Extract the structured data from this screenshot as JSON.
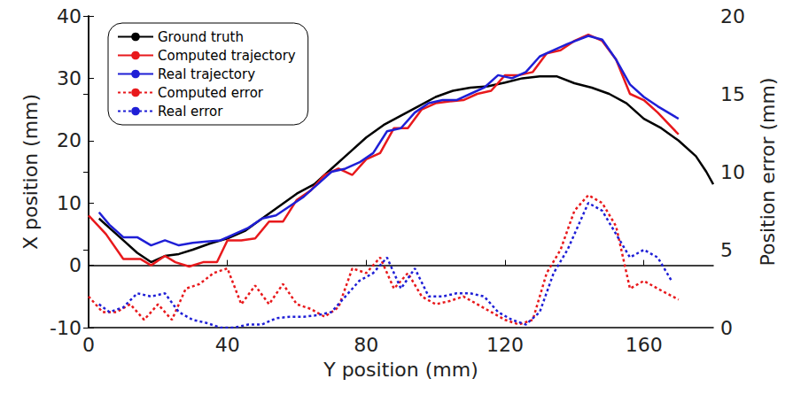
{
  "chart_data": {
    "type": "line",
    "x_label": "Y position (mm)",
    "y_label": "X position (mm)",
    "y2_label": "Position error (mm)",
    "xlim": [
      0,
      180
    ],
    "xticks": [
      0,
      40,
      80,
      120,
      160
    ],
    "ylim": [
      -10,
      40
    ],
    "yticks": [
      -10,
      0,
      10,
      20,
      30,
      40
    ],
    "y2lim": [
      0,
      20
    ],
    "y2ticks": [
      0,
      5,
      10,
      15,
      20
    ],
    "grid": false,
    "legend": "upper left",
    "series": [
      {
        "name": "Ground truth",
        "color": "#000000",
        "line_style": "solid",
        "x": [
          3,
          6,
          10,
          14,
          18,
          22,
          26,
          30,
          35,
          40,
          45,
          50,
          55,
          60,
          65,
          70,
          75,
          80,
          85,
          90,
          95,
          100,
          105,
          110,
          115,
          120,
          125,
          130,
          135,
          140,
          145,
          150,
          155,
          160,
          165,
          170,
          175,
          178,
          180
        ],
        "values": [
          7.5,
          6,
          4,
          2,
          0.5,
          1.5,
          1.8,
          2.5,
          3.5,
          4.3,
          5.5,
          7.5,
          9.5,
          11.5,
          13,
          15.5,
          18,
          20.5,
          22.5,
          24,
          25.5,
          27,
          28,
          28.5,
          28.7,
          29.3,
          30,
          30.3,
          30.3,
          29.2,
          28.5,
          27.5,
          26,
          23.5,
          22,
          20,
          17.5,
          15,
          13
        ]
      },
      {
        "name": "Computed trajectory",
        "color": "#e8191c",
        "line_style": "solid",
        "x": [
          0,
          5,
          10,
          15,
          18,
          22,
          25,
          29,
          33,
          37,
          40,
          44,
          48,
          52,
          56,
          60,
          64,
          68,
          72,
          76,
          80,
          84,
          88,
          92,
          96,
          100,
          104,
          108,
          112,
          116,
          120,
          124,
          128,
          132,
          136,
          140,
          144,
          148,
          152,
          156,
          160,
          164,
          170
        ],
        "values": [
          8,
          5,
          1,
          1,
          0,
          1.5,
          0.5,
          -0.2,
          0.5,
          0.5,
          4,
          4,
          4.3,
          7,
          7,
          10.5,
          12,
          14.5,
          15.5,
          14.5,
          17,
          18,
          22,
          22,
          25,
          26,
          26.3,
          26.5,
          27.5,
          28,
          30.5,
          30.5,
          31,
          34,
          34.5,
          36,
          37,
          36,
          33,
          27.5,
          26.5,
          24.5,
          21
        ]
      },
      {
        "name": "Real trajectory",
        "color": "#1f1fd6",
        "line_style": "solid",
        "x": [
          3,
          6,
          10,
          14,
          18,
          22,
          26,
          30,
          34,
          38,
          42,
          46,
          50,
          54,
          58,
          62,
          66,
          70,
          74,
          78,
          82,
          86,
          90,
          94,
          98,
          102,
          106,
          110,
          114,
          118,
          122,
          126,
          130,
          134,
          138,
          144,
          148,
          152,
          156,
          160,
          164,
          170
        ],
        "values": [
          8.5,
          6.5,
          4.5,
          4.5,
          3.2,
          4,
          3.2,
          3.6,
          3.8,
          4,
          5,
          6,
          7.5,
          8,
          9.5,
          11,
          13,
          15,
          15.5,
          16.5,
          18,
          21.5,
          22,
          24.5,
          26,
          26.5,
          26.5,
          27.5,
          28.5,
          30.5,
          30,
          31,
          33.5,
          34.5,
          35.5,
          36.8,
          36.2,
          33,
          29,
          27,
          25.5,
          23.5
        ]
      },
      {
        "name": "Computed error",
        "color": "#e8191c",
        "line_style": "dotted",
        "axis": "y2",
        "x": [
          0,
          4,
          8,
          12,
          16,
          20,
          24,
          28,
          32,
          36,
          40,
          44,
          48,
          52,
          56,
          60,
          64,
          68,
          72,
          76,
          80,
          84,
          88,
          92,
          96,
          100,
          104,
          108,
          112,
          116,
          120,
          124,
          128,
          132,
          136,
          140,
          144,
          148,
          152,
          156,
          160,
          164,
          170
        ],
        "values": [
          2,
          1,
          1,
          1.5,
          0.5,
          1.5,
          0.5,
          2.5,
          2.8,
          3.5,
          3.8,
          1.5,
          2.7,
          1.5,
          2.8,
          1.5,
          1.2,
          0.7,
          1.3,
          3.8,
          3.5,
          4.5,
          2.5,
          3.5,
          2,
          1.5,
          1.7,
          2,
          1.5,
          1,
          0.5,
          0.2,
          0.5,
          3.5,
          5,
          7.5,
          8.5,
          8,
          6.5,
          2.5,
          3,
          2.5,
          1.8
        ]
      },
      {
        "name": "Real error",
        "color": "#1f1fd6",
        "line_style": "dotted",
        "axis": "y2",
        "x": [
          3,
          6,
          10,
          14,
          18,
          22,
          26,
          30,
          34,
          38,
          42,
          46,
          50,
          54,
          58,
          62,
          66,
          70,
          74,
          78,
          82,
          86,
          90,
          94,
          98,
          102,
          106,
          110,
          114,
          118,
          122,
          126,
          130,
          134,
          138,
          144,
          148,
          152,
          156,
          160,
          164,
          168
        ],
        "values": [
          1.5,
          1,
          1.3,
          2.2,
          2,
          2.2,
          1,
          0.5,
          0.3,
          0,
          0,
          0.2,
          0.2,
          0.6,
          0.7,
          0.7,
          0.8,
          1,
          2,
          3,
          3.5,
          4.5,
          2.5,
          3.8,
          2,
          2,
          2.2,
          2.2,
          2,
          1,
          0.5,
          0.2,
          1,
          3.5,
          5,
          8,
          7.5,
          6,
          4.5,
          5,
          4.5,
          3
        ]
      }
    ]
  }
}
